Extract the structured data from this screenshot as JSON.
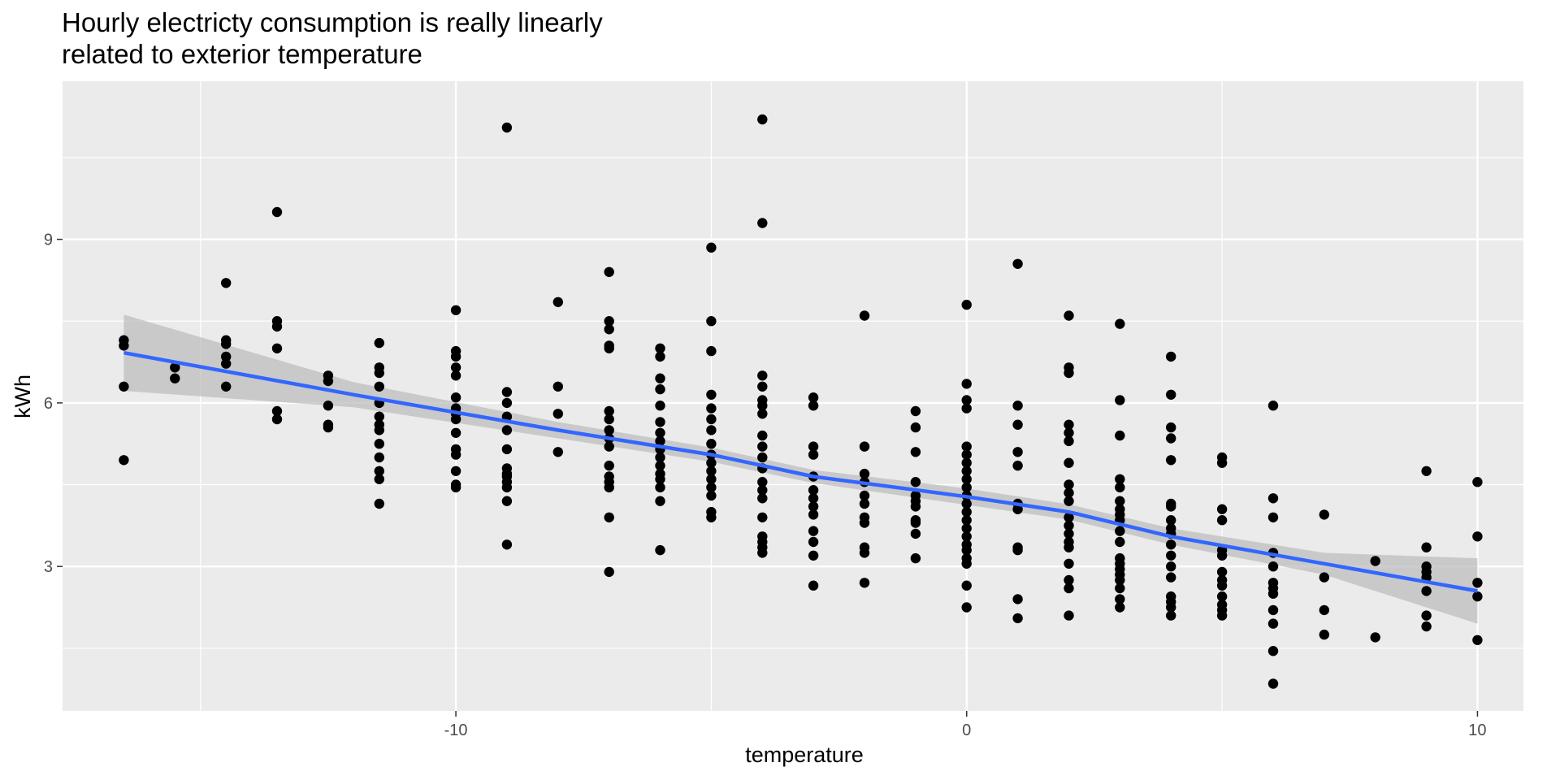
{
  "chart_data": {
    "type": "scatter",
    "title_lines": [
      "Hourly electricty consumption is really linearly",
      "related to exterior temperature"
    ],
    "xlabel": "temperature",
    "ylabel": "kWh",
    "xlim": [
      -17.7,
      10.9
    ],
    "ylim": [
      0.35,
      11.9
    ],
    "x_ticks": [
      -10,
      0,
      10
    ],
    "x_tick_labels": [
      "-10",
      "0",
      "10"
    ],
    "x_minor_ticks": [
      -15,
      -5,
      5
    ],
    "y_ticks": [
      3,
      6,
      9
    ],
    "y_tick_labels": [
      "3",
      "6",
      "9"
    ],
    "y_minor_ticks": [
      1.5,
      4.5,
      7.5,
      10.5
    ],
    "grid": true,
    "legend": "none",
    "colors": {
      "panel": "#ebebeb",
      "grid": "#ffffff",
      "points": "#000000",
      "smooth_line": "#3366ff",
      "confidence_band": "#bebebe"
    },
    "points": [
      [
        -16.5,
        7.15
      ],
      [
        -16.5,
        7.05
      ],
      [
        -16.5,
        6.3
      ],
      [
        -16.5,
        4.95
      ],
      [
        -15.5,
        6.65
      ],
      [
        -15.5,
        6.45
      ],
      [
        -14.5,
        8.2
      ],
      [
        -14.5,
        7.15
      ],
      [
        -14.5,
        7.08
      ],
      [
        -14.5,
        6.85
      ],
      [
        -14.5,
        6.72
      ],
      [
        -14.5,
        6.3
      ],
      [
        -13.5,
        9.5
      ],
      [
        -13.5,
        7.5
      ],
      [
        -13.5,
        7.4
      ],
      [
        -13.5,
        7.0
      ],
      [
        -13.5,
        5.85
      ],
      [
        -13.5,
        5.7
      ],
      [
        -12.5,
        6.5
      ],
      [
        -12.5,
        6.4
      ],
      [
        -12.5,
        5.95
      ],
      [
        -12.5,
        5.6
      ],
      [
        -12.5,
        5.55
      ],
      [
        -11.5,
        7.1
      ],
      [
        -11.5,
        6.65
      ],
      [
        -11.5,
        6.55
      ],
      [
        -11.5,
        6.3
      ],
      [
        -11.5,
        6.0
      ],
      [
        -11.5,
        5.75
      ],
      [
        -11.5,
        5.6
      ],
      [
        -11.5,
        5.5
      ],
      [
        -11.5,
        5.25
      ],
      [
        -11.5,
        5.0
      ],
      [
        -11.5,
        4.75
      ],
      [
        -11.5,
        4.6
      ],
      [
        -11.5,
        4.15
      ],
      [
        -10,
        7.7
      ],
      [
        -10,
        6.95
      ],
      [
        -10,
        6.85
      ],
      [
        -10,
        6.65
      ],
      [
        -10,
        6.5
      ],
      [
        -10,
        6.1
      ],
      [
        -10,
        5.9
      ],
      [
        -10,
        5.8
      ],
      [
        -10,
        5.7
      ],
      [
        -10,
        5.45
      ],
      [
        -10,
        5.15
      ],
      [
        -10,
        5.05
      ],
      [
        -10,
        4.75
      ],
      [
        -10,
        4.5
      ],
      [
        -10,
        4.45
      ],
      [
        -9,
        11.05
      ],
      [
        -9,
        6.2
      ],
      [
        -9,
        6.0
      ],
      [
        -9,
        5.75
      ],
      [
        -9,
        5.5
      ],
      [
        -9,
        5.15
      ],
      [
        -9,
        4.8
      ],
      [
        -9,
        4.7
      ],
      [
        -9,
        4.65
      ],
      [
        -9,
        4.55
      ],
      [
        -9,
        4.45
      ],
      [
        -9,
        4.2
      ],
      [
        -9,
        3.4
      ],
      [
        -8,
        7.85
      ],
      [
        -8,
        6.3
      ],
      [
        -8,
        5.8
      ],
      [
        -8,
        5.1
      ],
      [
        -7,
        8.4
      ],
      [
        -7,
        7.5
      ],
      [
        -7,
        7.35
      ],
      [
        -7,
        7.05
      ],
      [
        -7,
        7.0
      ],
      [
        -7,
        5.85
      ],
      [
        -7,
        5.7
      ],
      [
        -7,
        5.5
      ],
      [
        -7,
        5.35
      ],
      [
        -7,
        5.2
      ],
      [
        -7,
        4.85
      ],
      [
        -7,
        4.65
      ],
      [
        -7,
        4.55
      ],
      [
        -7,
        4.45
      ],
      [
        -7,
        3.9
      ],
      [
        -7,
        2.9
      ],
      [
        -6,
        7.0
      ],
      [
        -6,
        6.85
      ],
      [
        -6,
        6.45
      ],
      [
        -6,
        6.25
      ],
      [
        -6,
        5.95
      ],
      [
        -6,
        5.65
      ],
      [
        -6,
        5.45
      ],
      [
        -6,
        5.3
      ],
      [
        -6,
        5.15
      ],
      [
        -6,
        5.0
      ],
      [
        -6,
        4.85
      ],
      [
        -6,
        4.7
      ],
      [
        -6,
        4.6
      ],
      [
        -6,
        4.45
      ],
      [
        -6,
        4.2
      ],
      [
        -6,
        3.3
      ],
      [
        -5,
        8.85
      ],
      [
        -5,
        7.5
      ],
      [
        -5,
        6.95
      ],
      [
        -5,
        6.15
      ],
      [
        -5,
        5.9
      ],
      [
        -5,
        5.7
      ],
      [
        -5,
        5.5
      ],
      [
        -5,
        5.25
      ],
      [
        -5,
        5.05
      ],
      [
        -5,
        4.9
      ],
      [
        -5,
        4.75
      ],
      [
        -5,
        4.6
      ],
      [
        -5,
        4.45
      ],
      [
        -5,
        4.3
      ],
      [
        -5,
        4.0
      ],
      [
        -5,
        3.9
      ],
      [
        -4,
        11.2
      ],
      [
        -4,
        9.3
      ],
      [
        -4,
        6.5
      ],
      [
        -4,
        6.3
      ],
      [
        -4,
        6.05
      ],
      [
        -4,
        5.95
      ],
      [
        -4,
        5.8
      ],
      [
        -4,
        5.4
      ],
      [
        -4,
        5.2
      ],
      [
        -4,
        5.0
      ],
      [
        -4,
        4.8
      ],
      [
        -4,
        4.55
      ],
      [
        -4,
        4.4
      ],
      [
        -4,
        4.25
      ],
      [
        -4,
        3.9
      ],
      [
        -4,
        3.55
      ],
      [
        -4,
        3.45
      ],
      [
        -4,
        3.35
      ],
      [
        -4,
        3.25
      ],
      [
        -3,
        6.1
      ],
      [
        -3,
        5.95
      ],
      [
        -3,
        5.2
      ],
      [
        -3,
        5.05
      ],
      [
        -3,
        4.65
      ],
      [
        -3,
        4.4
      ],
      [
        -3,
        4.25
      ],
      [
        -3,
        4.1
      ],
      [
        -3,
        3.95
      ],
      [
        -3,
        3.65
      ],
      [
        -3,
        3.45
      ],
      [
        -3,
        3.2
      ],
      [
        -3,
        2.65
      ],
      [
        -2,
        7.6
      ],
      [
        -2,
        5.2
      ],
      [
        -2,
        4.7
      ],
      [
        -2,
        4.55
      ],
      [
        -2,
        4.3
      ],
      [
        -2,
        4.15
      ],
      [
        -2,
        3.9
      ],
      [
        -2,
        3.8
      ],
      [
        -2,
        3.35
      ],
      [
        -2,
        3.25
      ],
      [
        -2,
        2.7
      ],
      [
        -1,
        5.85
      ],
      [
        -1,
        5.55
      ],
      [
        -1,
        5.1
      ],
      [
        -1,
        4.55
      ],
      [
        -1,
        4.3
      ],
      [
        -1,
        4.2
      ],
      [
        -1,
        4.1
      ],
      [
        -1,
        3.85
      ],
      [
        -1,
        3.8
      ],
      [
        -1,
        3.6
      ],
      [
        -1,
        3.15
      ],
      [
        0,
        7.8
      ],
      [
        0,
        6.35
      ],
      [
        0,
        6.05
      ],
      [
        0,
        5.9
      ],
      [
        0,
        5.2
      ],
      [
        0,
        5.05
      ],
      [
        0,
        4.9
      ],
      [
        0,
        4.75
      ],
      [
        0,
        4.6
      ],
      [
        0,
        4.45
      ],
      [
        0,
        4.3
      ],
      [
        0,
        4.15
      ],
      [
        0,
        4.0
      ],
      [
        0,
        3.85
      ],
      [
        0,
        3.7
      ],
      [
        0,
        3.55
      ],
      [
        0,
        3.4
      ],
      [
        0,
        3.3
      ],
      [
        0,
        3.15
      ],
      [
        0,
        3.05
      ],
      [
        0,
        2.65
      ],
      [
        0,
        2.25
      ],
      [
        1,
        8.55
      ],
      [
        1,
        5.95
      ],
      [
        1,
        5.6
      ],
      [
        1,
        5.1
      ],
      [
        1,
        4.85
      ],
      [
        1,
        4.15
      ],
      [
        1,
        4.05
      ],
      [
        1,
        3.35
      ],
      [
        1,
        3.3
      ],
      [
        1,
        2.4
      ],
      [
        1,
        2.05
      ],
      [
        2,
        7.6
      ],
      [
        2,
        6.65
      ],
      [
        2,
        6.55
      ],
      [
        2,
        5.6
      ],
      [
        2,
        5.45
      ],
      [
        2,
        5.3
      ],
      [
        2,
        4.9
      ],
      [
        2,
        4.5
      ],
      [
        2,
        4.35
      ],
      [
        2,
        4.2
      ],
      [
        2,
        3.9
      ],
      [
        2,
        3.75
      ],
      [
        2,
        3.6
      ],
      [
        2,
        3.45
      ],
      [
        2,
        3.35
      ],
      [
        2,
        3.05
      ],
      [
        2,
        2.75
      ],
      [
        2,
        2.6
      ],
      [
        2,
        2.1
      ],
      [
        3,
        7.45
      ],
      [
        3,
        6.05
      ],
      [
        3,
        5.4
      ],
      [
        3,
        4.6
      ],
      [
        3,
        4.45
      ],
      [
        3,
        4.2
      ],
      [
        3,
        4.05
      ],
      [
        3,
        3.95
      ],
      [
        3,
        3.85
      ],
      [
        3,
        3.65
      ],
      [
        3,
        3.45
      ],
      [
        3,
        3.15
      ],
      [
        3,
        3.05
      ],
      [
        3,
        2.95
      ],
      [
        3,
        2.85
      ],
      [
        3,
        2.75
      ],
      [
        3,
        2.6
      ],
      [
        3,
        2.4
      ],
      [
        3,
        2.25
      ],
      [
        4,
        6.85
      ],
      [
        4,
        6.15
      ],
      [
        4,
        5.55
      ],
      [
        4,
        5.35
      ],
      [
        4,
        4.95
      ],
      [
        4,
        4.15
      ],
      [
        4,
        4.1
      ],
      [
        4,
        3.85
      ],
      [
        4,
        3.7
      ],
      [
        4,
        3.6
      ],
      [
        4,
        3.4
      ],
      [
        4,
        3.2
      ],
      [
        4,
        3.0
      ],
      [
        4,
        2.8
      ],
      [
        4,
        2.45
      ],
      [
        4,
        2.35
      ],
      [
        4,
        2.25
      ],
      [
        4,
        2.1
      ],
      [
        5,
        5.0
      ],
      [
        5,
        4.9
      ],
      [
        5,
        4.05
      ],
      [
        5,
        3.85
      ],
      [
        5,
        3.3
      ],
      [
        5,
        3.2
      ],
      [
        5,
        2.9
      ],
      [
        5,
        2.75
      ],
      [
        5,
        2.65
      ],
      [
        5,
        2.45
      ],
      [
        5,
        2.3
      ],
      [
        5,
        2.2
      ],
      [
        5,
        2.1
      ],
      [
        6,
        5.95
      ],
      [
        6,
        4.25
      ],
      [
        6,
        3.9
      ],
      [
        6,
        3.25
      ],
      [
        6,
        3.0
      ],
      [
        6,
        2.7
      ],
      [
        6,
        2.6
      ],
      [
        6,
        2.5
      ],
      [
        6,
        2.2
      ],
      [
        6,
        1.95
      ],
      [
        6,
        1.45
      ],
      [
        6,
        0.85
      ],
      [
        7,
        3.95
      ],
      [
        7,
        2.8
      ],
      [
        7,
        2.2
      ],
      [
        7,
        1.75
      ],
      [
        8,
        3.1
      ],
      [
        8,
        1.7
      ],
      [
        9,
        4.75
      ],
      [
        9,
        3.35
      ],
      [
        9,
        3.0
      ],
      [
        9,
        2.9
      ],
      [
        9,
        2.8
      ],
      [
        9,
        2.55
      ],
      [
        9,
        2.1
      ],
      [
        9,
        1.9
      ],
      [
        10,
        4.55
      ],
      [
        10,
        3.55
      ],
      [
        10,
        2.7
      ],
      [
        10,
        2.45
      ],
      [
        10,
        1.65
      ]
    ],
    "smooth": {
      "x": [
        -16.5,
        -12.0,
        -8.0,
        -5.0,
        -3.0,
        0.0,
        2.0,
        4.0,
        7.0,
        10.0
      ],
      "y": [
        6.92,
        6.15,
        5.5,
        5.05,
        4.65,
        4.28,
        4.0,
        3.55,
        3.05,
        2.55
      ],
      "lower": [
        6.22,
        5.92,
        5.35,
        4.92,
        4.53,
        4.13,
        3.86,
        3.4,
        2.85,
        1.95
      ],
      "upper": [
        7.62,
        6.38,
        5.65,
        5.18,
        4.77,
        4.43,
        4.14,
        3.7,
        3.25,
        3.15
      ]
    }
  }
}
